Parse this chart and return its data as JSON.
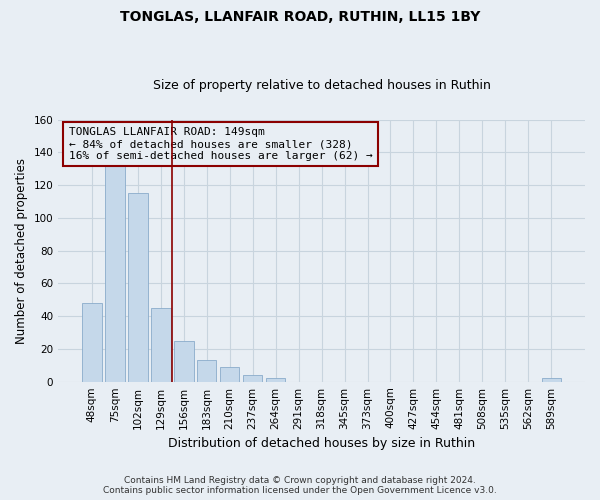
{
  "title": "TONGLAS, LLANFAIR ROAD, RUTHIN, LL15 1BY",
  "subtitle": "Size of property relative to detached houses in Ruthin",
  "xlabel": "Distribution of detached houses by size in Ruthin",
  "ylabel": "Number of detached properties",
  "bar_labels": [
    "48sqm",
    "75sqm",
    "102sqm",
    "129sqm",
    "156sqm",
    "183sqm",
    "210sqm",
    "237sqm",
    "264sqm",
    "291sqm",
    "318sqm",
    "345sqm",
    "373sqm",
    "400sqm",
    "427sqm",
    "454sqm",
    "481sqm",
    "508sqm",
    "535sqm",
    "562sqm",
    "589sqm"
  ],
  "bar_values": [
    48,
    133,
    115,
    45,
    25,
    13,
    9,
    4,
    2,
    0,
    0,
    0,
    0,
    0,
    0,
    0,
    0,
    0,
    0,
    0,
    2
  ],
  "bar_color": "#c5d8ea",
  "bar_edge_color": "#8aaccb",
  "vline_color": "#8b0000",
  "vline_x_index": 3.5,
  "annotation_lines": [
    "TONGLAS LLANFAIR ROAD: 149sqm",
    "← 84% of detached houses are smaller (328)",
    "16% of semi-detached houses are larger (62) →"
  ],
  "ylim": [
    0,
    160
  ],
  "footer_line1": "Contains HM Land Registry data © Crown copyright and database right 2024.",
  "footer_line2": "Contains public sector information licensed under the Open Government Licence v3.0.",
  "background_color": "#e8eef4",
  "plot_background_color": "#e8eef4",
  "grid_color": "#c8d4de",
  "title_fontsize": 10,
  "subtitle_fontsize": 9,
  "ylabel_fontsize": 8.5,
  "xlabel_fontsize": 9,
  "tick_fontsize": 7.5,
  "footer_fontsize": 6.5
}
